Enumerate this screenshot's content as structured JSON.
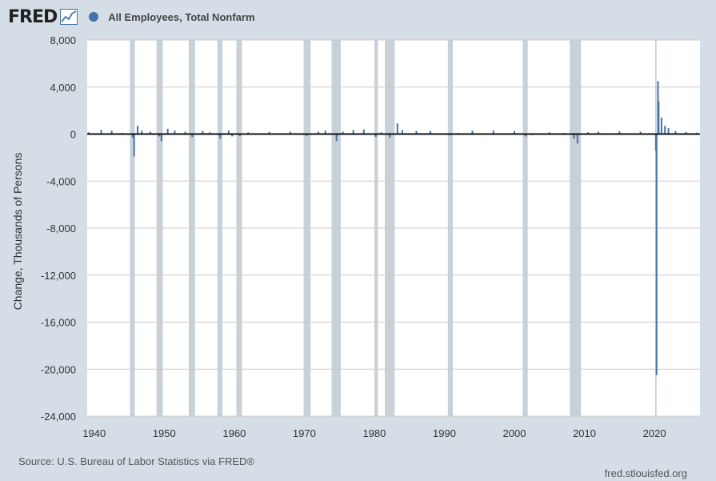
{
  "header": {
    "logo_text": "FRED",
    "series_label": "All Employees, Total Nonfarm"
  },
  "colors": {
    "series": "#4572a7",
    "recession": "#c8d0d8",
    "zero_line": "#111111",
    "grid": "#cccccc",
    "plot_bg": "#ffffff",
    "page_bg": "#d5dde6"
  },
  "footer": {
    "source": "Source: U.S. Bureau of Labor Statistics via FRED®",
    "site": "fred.stlouisfed.org"
  },
  "chart_data": {
    "type": "bar",
    "title": "",
    "ylabel": "Change, Thousands of Persons",
    "xlabel": "",
    "xlim": [
      1939,
      2026.5
    ],
    "ylim": [
      -24000,
      8000
    ],
    "y_ticks": [
      8000,
      4000,
      0,
      -4000,
      -8000,
      -12000,
      -16000,
      -20000,
      -24000
    ],
    "y_tick_labels": [
      "8,000",
      "4,000",
      "0",
      "-4,000",
      "-8,000",
      "-12,000",
      "-16,000",
      "-20,000",
      "-24,000"
    ],
    "x_ticks": [
      1940,
      1950,
      1960,
      1970,
      1980,
      1990,
      2000,
      2010,
      2020
    ],
    "x_tick_labels": [
      "1940",
      "1950",
      "1960",
      "1970",
      "1980",
      "1990",
      "2000",
      "2010",
      "2020"
    ],
    "grid": true,
    "legend_position": "top-left",
    "recessions": [
      [
        1945.1,
        1945.8
      ],
      [
        1948.9,
        1949.8
      ],
      [
        1953.5,
        1954.4
      ],
      [
        1957.6,
        1958.3
      ],
      [
        1960.3,
        1961.1
      ],
      [
        1969.9,
        1970.9
      ],
      [
        1973.9,
        1975.2
      ],
      [
        1980.0,
        1980.5
      ],
      [
        1981.5,
        1982.9
      ],
      [
        1990.5,
        1991.2
      ],
      [
        2001.2,
        2001.9
      ],
      [
        2007.9,
        2009.5
      ],
      [
        2020.1,
        2020.3
      ]
    ],
    "series": [
      {
        "name": "All Employees, Total Nonfarm",
        "x": [
          1939.2,
          1941.0,
          1942.5,
          1944.0,
          1945.5,
          1945.7,
          1946.2,
          1946.8,
          1948.0,
          1949.3,
          1949.6,
          1950.5,
          1951.5,
          1953.0,
          1954.0,
          1955.5,
          1956.5,
          1958.0,
          1959.2,
          1959.7,
          1960.8,
          1962.0,
          1965.0,
          1968.0,
          1970.3,
          1972.0,
          1973.0,
          1974.6,
          1975.5,
          1977.0,
          1978.5,
          1980.2,
          1981.0,
          1982.2,
          1983.3,
          1984.0,
          1986.0,
          1988.0,
          1990.8,
          1992.0,
          1994.0,
          1997.0,
          2000.0,
          2001.6,
          2002.5,
          2005.0,
          2007.0,
          2008.5,
          2009.0,
          2010.5,
          2012.0,
          2015.0,
          2018.0,
          2020.2,
          2020.3,
          2020.5,
          2020.6,
          2021.0,
          2021.5,
          2022.0,
          2023.0,
          2024.5,
          2026.0
        ],
        "values": [
          150,
          350,
          300,
          100,
          -300,
          -1900,
          700,
          300,
          200,
          -200,
          -600,
          450,
          300,
          200,
          -250,
          250,
          150,
          -400,
          300,
          -200,
          -150,
          150,
          180,
          200,
          -150,
          200,
          300,
          -600,
          200,
          350,
          400,
          -250,
          150,
          -300,
          900,
          350,
          250,
          250,
          -100,
          100,
          300,
          300,
          250,
          -200,
          -100,
          150,
          100,
          -400,
          -800,
          150,
          200,
          230,
          200,
          -1400,
          -20500,
          4500,
          2800,
          1400,
          700,
          500,
          250,
          180,
          120
        ]
      }
    ]
  }
}
